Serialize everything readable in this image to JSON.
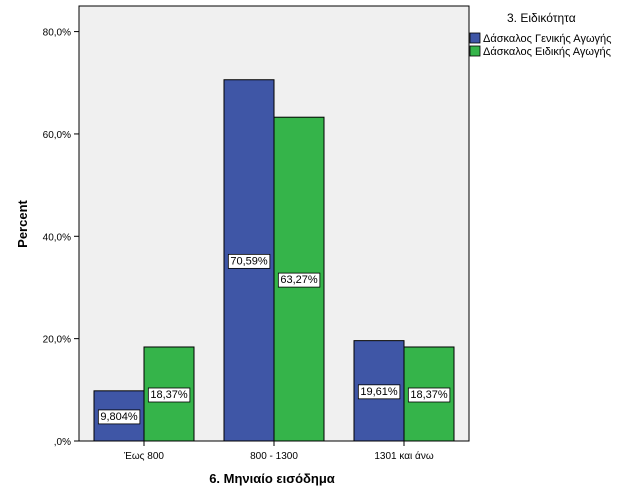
{
  "chart_data": {
    "type": "bar",
    "categories": [
      "Έως 800",
      "800 - 1300",
      "1301 και άνω"
    ],
    "series": [
      {
        "name": "Δάσκαλος Γενικής Αγωγής",
        "values": [
          9.804,
          70.59,
          19.61
        ],
        "labels": [
          "9,804%",
          "70,59%",
          "19,61%"
        ],
        "color": "#3f56a6"
      },
      {
        "name": "Δάσκαλος Ειδικής Αγωγής",
        "values": [
          18.37,
          63.27,
          18.37
        ],
        "labels": [
          "18,37%",
          "63,27%",
          "18,37%"
        ],
        "color": "#35b44a"
      }
    ],
    "xlabel": "6. Μηνιαίο εισόδημα",
    "ylabel": "Percent",
    "ylim": [
      0,
      85
    ],
    "yticks": [
      0,
      20,
      40,
      60,
      80
    ],
    "ytick_labels": [
      ",0%",
      "20,0%",
      "40,0%",
      "60,0%",
      "80,0%"
    ],
    "legend_title": "3. Ειδικότητα",
    "legend_position": "top-right",
    "plot_background": "#f0f0f0",
    "grid": false
  }
}
